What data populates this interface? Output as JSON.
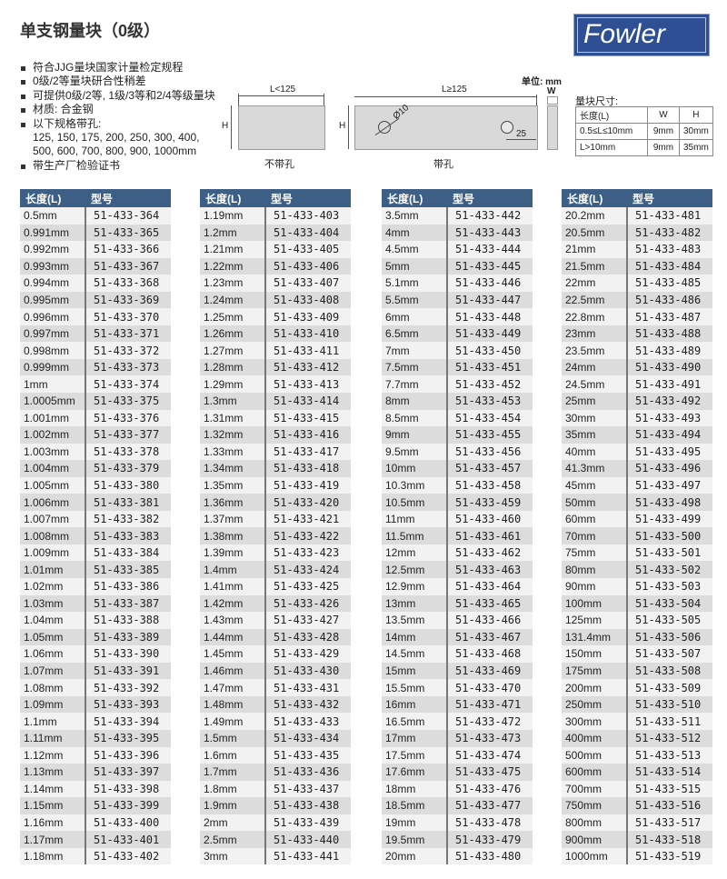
{
  "title": "单支钢量块（0级）",
  "logo": {
    "text": "Fowler",
    "color": "#2f4f95"
  },
  "features": [
    "符合JJG量块国家计量检定规程",
    "0级/2等量块研合性稍差",
    "可提供0级/2等, 1级/3等和2/4等级量块",
    "材质: 合金钢",
    "以下规格带孔:",
    "125, 150, 175, 200, 250, 300, 400,",
    "500, 600, 700, 800, 900, 1000mm",
    "带生产厂检验证书"
  ],
  "diagram": {
    "unit": "单位: mm",
    "no_hole": {
      "length": "L<125",
      "height": "H",
      "caption": "不带孔"
    },
    "with_hole": {
      "length": "L≥125",
      "height": "H",
      "diameter": "Ø10",
      "offset": "25",
      "width": "W",
      "caption": "带孔"
    }
  },
  "size_table": {
    "title": "量块尺寸:",
    "headers": [
      "长度(L)",
      "W",
      "H"
    ],
    "rows": [
      [
        "0.5≤L≤10mm",
        "9mm",
        "30mm"
      ],
      [
        "L>10mm",
        "9mm",
        "35mm"
      ]
    ]
  },
  "colors": {
    "header": "#3d5f85",
    "row_dark": "#dcdcdc",
    "row_light": "#f2f2f2"
  },
  "tables": [
    {
      "headers": [
        "长度(L)",
        "型号"
      ],
      "lengths": [
        "0.5mm",
        "0.991mm",
        "0.992mm",
        "0.993mm",
        "0.994mm",
        "0.995mm",
        "0.996mm",
        "0.997mm",
        "0.998mm",
        "0.999mm",
        "1mm",
        "1.0005mm",
        "1.001mm",
        "1.002mm",
        "1.003mm",
        "1.004mm",
        "1.005mm",
        "1.006mm",
        "1.007mm",
        "1.008mm",
        "1.009mm",
        "1.01mm",
        "1.02mm",
        "1.03mm",
        "1.04mm",
        "1.05mm",
        "1.06mm",
        "1.07mm",
        "1.08mm",
        "1.09mm",
        "1.1mm",
        "1.11mm",
        "1.12mm",
        "1.13mm",
        "1.14mm",
        "1.15mm",
        "1.16mm",
        "1.17mm",
        "1.18mm"
      ],
      "models": [
        "51-433-364",
        "51-433-365",
        "51-433-366",
        "51-433-367",
        "51-433-368",
        "51-433-369",
        "51-433-370",
        "51-433-371",
        "51-433-372",
        "51-433-373",
        "51-433-374",
        "51-433-375",
        "51-433-376",
        "51-433-377",
        "51-433-378",
        "51-433-379",
        "51-433-380",
        "51-433-381",
        "51-433-382",
        "51-433-383",
        "51-433-384",
        "51-433-385",
        "51-433-386",
        "51-433-387",
        "51-433-388",
        "51-433-389",
        "51-433-390",
        "51-433-391",
        "51-433-392",
        "51-433-393",
        "51-433-394",
        "51-433-395",
        "51-433-396",
        "51-433-397",
        "51-433-398",
        "51-433-399",
        "51-433-400",
        "51-433-401",
        "51-433-402"
      ]
    },
    {
      "headers": [
        "长度(L)",
        "型号"
      ],
      "lengths": [
        "1.19mm",
        "1.2mm",
        "1.21mm",
        "1.22mm",
        "1.23mm",
        "1.24mm",
        "1.25mm",
        "1.26mm",
        "1.27mm",
        "1.28mm",
        "1.29mm",
        "1.3mm",
        "1.31mm",
        "1.32mm",
        "1.33mm",
        "1.34mm",
        "1.35mm",
        "1.36mm",
        "1.37mm",
        "1.38mm",
        "1.39mm",
        "1.4mm",
        "1.41mm",
        "1.42mm",
        "1.43mm",
        "1.44mm",
        "1.45mm",
        "1.46mm",
        "1.47mm",
        "1.48mm",
        "1.49mm",
        "1.5mm",
        "1.6mm",
        "1.7mm",
        "1.8mm",
        "1.9mm",
        "2mm",
        "2.5mm",
        "3mm"
      ],
      "models": [
        "51-433-403",
        "51-433-404",
        "51-433-405",
        "51-433-406",
        "51-433-407",
        "51-433-408",
        "51-433-409",
        "51-433-410",
        "51-433-411",
        "51-433-412",
        "51-433-413",
        "51-433-414",
        "51-433-415",
        "51-433-416",
        "51-433-417",
        "51-433-418",
        "51-433-419",
        "51-433-420",
        "51-433-421",
        "51-433-422",
        "51-433-423",
        "51-433-424",
        "51-433-425",
        "51-433-426",
        "51-433-427",
        "51-433-428",
        "51-433-429",
        "51-433-430",
        "51-433-431",
        "51-433-432",
        "51-433-433",
        "51-433-434",
        "51-433-435",
        "51-433-436",
        "51-433-437",
        "51-433-438",
        "51-433-439",
        "51-433-440",
        "51-433-441"
      ]
    },
    {
      "headers": [
        "长度(L)",
        "型号"
      ],
      "lengths": [
        "3.5mm",
        "4mm",
        "4.5mm",
        "5mm",
        "5.1mm",
        "5.5mm",
        "6mm",
        "6.5mm",
        "7mm",
        "7.5mm",
        "7.7mm",
        "8mm",
        "8.5mm",
        "9mm",
        "9.5mm",
        "10mm",
        "10.3mm",
        "10.5mm",
        "11mm",
        "11.5mm",
        "12mm",
        "12.5mm",
        "12.9mm",
        "13mm",
        "13.5mm",
        "14mm",
        "14.5mm",
        "15mm",
        "15.5mm",
        "16mm",
        "16.5mm",
        "17mm",
        "17.5mm",
        "17.6mm",
        "18mm",
        "18.5mm",
        "19mm",
        "19.5mm",
        "20mm"
      ],
      "models": [
        "51-433-442",
        "51-433-443",
        "51-433-444",
        "51-433-445",
        "51-433-446",
        "51-433-447",
        "51-433-448",
        "51-433-449",
        "51-433-450",
        "51-433-451",
        "51-433-452",
        "51-433-453",
        "51-433-454",
        "51-433-455",
        "51-433-456",
        "51-433-457",
        "51-433-458",
        "51-433-459",
        "51-433-460",
        "51-433-461",
        "51-433-462",
        "51-433-463",
        "51-433-464",
        "51-433-465",
        "51-433-466",
        "51-433-467",
        "51-433-468",
        "51-433-469",
        "51-433-470",
        "51-433-471",
        "51-433-472",
        "51-433-473",
        "51-433-474",
        "51-433-475",
        "51-433-476",
        "51-433-477",
        "51-433-478",
        "51-433-479",
        "51-433-480"
      ]
    },
    {
      "headers": [
        "长度(L)",
        "型号"
      ],
      "lengths": [
        "20.2mm",
        "20.5mm",
        "21mm",
        "21.5mm",
        "22mm",
        "22.5mm",
        "22.8mm",
        "23mm",
        "23.5mm",
        "24mm",
        "24.5mm",
        "25mm",
        "30mm",
        "35mm",
        "40mm",
        "41.3mm",
        "45mm",
        "50mm",
        "60mm",
        "70mm",
        "75mm",
        "80mm",
        "90mm",
        "100mm",
        "125mm",
        "131.4mm",
        "150mm",
        "175mm",
        "200mm",
        "250mm",
        "300mm",
        "400mm",
        "500mm",
        "600mm",
        "700mm",
        "750mm",
        "800mm",
        "900mm",
        "1000mm"
      ],
      "models": [
        "51-433-481",
        "51-433-482",
        "51-433-483",
        "51-433-484",
        "51-433-485",
        "51-433-486",
        "51-433-487",
        "51-433-488",
        "51-433-489",
        "51-433-490",
        "51-433-491",
        "51-433-492",
        "51-433-493",
        "51-433-494",
        "51-433-495",
        "51-433-496",
        "51-433-497",
        "51-433-498",
        "51-433-499",
        "51-433-500",
        "51-433-501",
        "51-433-502",
        "51-433-503",
        "51-433-504",
        "51-433-505",
        "51-433-506",
        "51-433-507",
        "51-433-508",
        "51-433-509",
        "51-433-510",
        "51-433-511",
        "51-433-512",
        "51-433-513",
        "51-433-514",
        "51-433-515",
        "51-433-516",
        "51-433-517",
        "51-433-518",
        "51-433-519"
      ]
    }
  ]
}
